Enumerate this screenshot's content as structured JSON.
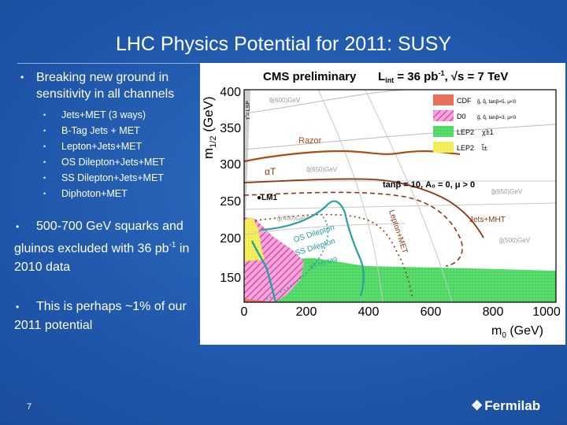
{
  "slide": {
    "title": "LHC Physics Potential for 2011: SUSY",
    "page_number": "7",
    "logo_text": "Fermilab",
    "bullets": {
      "main1": "Breaking new ground in sensitivity in all channels",
      "sub": [
        "Jets+MET (3 ways)",
        "B-Tag Jets + MET",
        "Lepton+Jets+MET",
        "OS Dilepton+Jets+MET",
        "SS Dilepton+Jets+MET",
        "Diphoton+MET"
      ],
      "main2_a": "500-700 GeV squarks and gluinos excluded with 36 pb",
      "main2_sup": "-1",
      "main2_b": " in 2010 data",
      "main3": "This is perhaps ~1% of our 2011 potential"
    }
  },
  "plot": {
    "header_left": "CMS preliminary",
    "header_lumi": "L",
    "header_lumi_sub": "int",
    "header_lumi_val": " = 36 pb",
    "header_lumi_sup": "-1",
    "header_energy": ", √s = 7 TeV",
    "ylabel": "m",
    "ylabel_sub": "1/2",
    "ylabel_unit": " (GeV)",
    "xlabel": "m",
    "xlabel_sub": "0",
    "xlabel_unit": " (GeV)",
    "lsp_label": "τ̃ = LSP",
    "xticks": [
      "0",
      "200",
      "400",
      "600",
      "800",
      "1000"
    ],
    "yticks": [
      "150",
      "200",
      "250",
      "300",
      "350",
      "400"
    ],
    "legend": {
      "cdf": "CDF",
      "cdf_note": "g̃, q̃, tanβ=5, μ<0",
      "d0": "D0",
      "d0_note": "g̃, q̃, tanβ=3, μ<0",
      "lep2_a": "LEP2",
      "lep2_a_note": "χ̃±1",
      "lep2_b": "LEP2",
      "lep2_b_note": "l̃±"
    },
    "params": "tanβ = 10, A₀ = 0, μ > 0",
    "labels": {
      "razor": "Razor",
      "alphaT": "αT",
      "lm1": "LM1",
      "jets_mht": "Jets+MHT",
      "lepton_met": "Lepton+MET",
      "os_dilepton": "OS Dilepton",
      "ss_dilepton": "SS Dilepton",
      "alphaT_btag": "αT+b-tag",
      "q600": "q̃(600)GeV",
      "q650": "q̃(650)GeV",
      "q500": "q̃(500)GeV",
      "g650": "g̃(650)GeV",
      "g500": "g̃(500)GeV",
      "g400": "g̃(400)GeV"
    }
  },
  "colors": {
    "background": "#1f4f9c",
    "razor": "#b04a12",
    "lepton": "#2aa0a0",
    "cdf": "#e8705a",
    "d0": "#e02ab0",
    "lep2_green": "#66e07a",
    "lep2_yellow": "#f4f060"
  }
}
